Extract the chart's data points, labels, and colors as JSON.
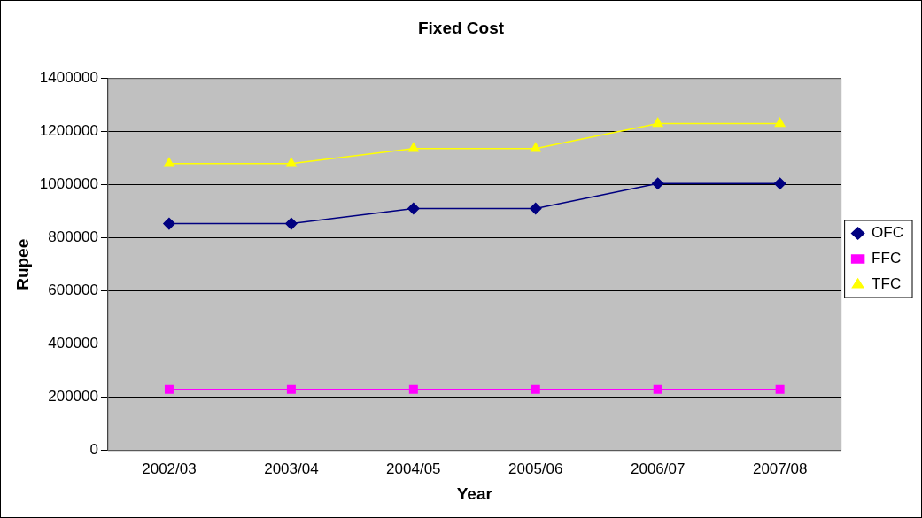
{
  "chart_data": {
    "type": "line",
    "title": "Fixed Cost",
    "xlabel": "Year",
    "ylabel": "Rupee",
    "categories": [
      "2002/03",
      "2003/04",
      "2004/05",
      "2005/06",
      "2006/07",
      "2007/08"
    ],
    "series": [
      {
        "name": "OFC",
        "color": "#000080",
        "marker": "diamond",
        "values": [
          854000,
          854000,
          911000,
          911000,
          1005000,
          1005000
        ]
      },
      {
        "name": "FFC",
        "color": "#ff00ff",
        "marker": "square",
        "values": [
          230000,
          230000,
          230000,
          230000,
          230000,
          230000
        ]
      },
      {
        "name": "TFC",
        "color": "#ffff00",
        "marker": "triangle",
        "values": [
          1080000,
          1080000,
          1137000,
          1137000,
          1231000,
          1231000
        ]
      }
    ],
    "ylim": [
      0,
      1400000
    ],
    "yticks": [
      0,
      200000,
      400000,
      600000,
      800000,
      1000000,
      1200000,
      1400000
    ],
    "grid": "y",
    "legend": "right",
    "line_style": "solid"
  }
}
